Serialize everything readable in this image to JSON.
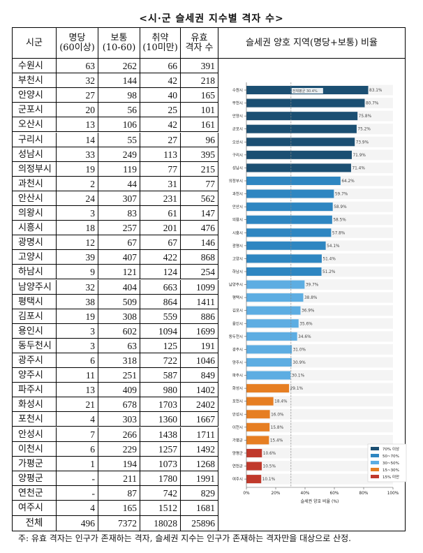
{
  "title": "<시·군 슬세권 지수별 격자 수>",
  "table": {
    "headers": [
      "시군",
      "명당",
      "(60이상)",
      "보통",
      "(10-60)",
      "취약",
      "(10미만)",
      "유효",
      "격자 수",
      "슬세권 양호 지역(명당+보통) 비율"
    ],
    "rows": [
      [
        "수원시",
        "63",
        "262",
        "66",
        "391"
      ],
      [
        "부천시",
        "32",
        "144",
        "42",
        "218"
      ],
      [
        "안양시",
        "27",
        "98",
        "40",
        "165"
      ],
      [
        "군포시",
        "20",
        "56",
        "25",
        "101"
      ],
      [
        "오산시",
        "13",
        "106",
        "42",
        "161"
      ],
      [
        "구리시",
        "14",
        "55",
        "27",
        "96"
      ],
      [
        "성남시",
        "33",
        "249",
        "113",
        "395"
      ],
      [
        "의정부시",
        "19",
        "119",
        "77",
        "215"
      ],
      [
        "과천시",
        "2",
        "44",
        "31",
        "77"
      ],
      [
        "안산시",
        "24",
        "307",
        "231",
        "562"
      ],
      [
        "의왕시",
        "3",
        "83",
        "61",
        "147"
      ],
      [
        "시흥시",
        "18",
        "257",
        "201",
        "476"
      ],
      [
        "광명시",
        "12",
        "67",
        "67",
        "146"
      ],
      [
        "고양시",
        "39",
        "407",
        "422",
        "868"
      ],
      [
        "하남시",
        "9",
        "121",
        "124",
        "254"
      ],
      [
        "남양주시",
        "32",
        "404",
        "663",
        "1099"
      ],
      [
        "평택시",
        "38",
        "509",
        "864",
        "1411"
      ],
      [
        "김포시",
        "19",
        "308",
        "559",
        "886"
      ],
      [
        "용인시",
        "3",
        "602",
        "1094",
        "1699"
      ],
      [
        "동두천시",
        "3",
        "63",
        "125",
        "191"
      ],
      [
        "광주시",
        "6",
        "318",
        "722",
        "1046"
      ],
      [
        "양주시",
        "11",
        "251",
        "587",
        "849"
      ],
      [
        "파주시",
        "13",
        "409",
        "980",
        "1402"
      ],
      [
        "화성시",
        "21",
        "678",
        "1703",
        "2402"
      ],
      [
        "포천시",
        "4",
        "303",
        "1360",
        "1667"
      ],
      [
        "안성시",
        "7",
        "266",
        "1438",
        "1711"
      ],
      [
        "이천시",
        "6",
        "229",
        "1257",
        "1492"
      ],
      [
        "가평군",
        "1",
        "194",
        "1073",
        "1268"
      ],
      [
        "양평군",
        "-",
        "211",
        "1780",
        "1991"
      ],
      [
        "연천군",
        "-",
        "87",
        "742",
        "829"
      ],
      [
        "여주시",
        "4",
        "165",
        "1512",
        "1681"
      ]
    ],
    "total": [
      "전체",
      "496",
      "7372",
      "18028",
      "25896"
    ]
  },
  "note": "주: 유효 격자는 인구가 존재하는 격자, 슬세권 지수는 인구가 존재하는 격자만을 대상으로 산정.",
  "chart_data": {
    "type": "bar",
    "orientation": "horizontal",
    "xlabel": "슬세권 양호 비율 (%)",
    "xlim": [
      0,
      100
    ],
    "xticks": [
      "0%",
      "20%",
      "40%",
      "60%",
      "80%",
      "100%"
    ],
    "categories": [
      "수원시",
      "부천시",
      "안양시",
      "군포시",
      "오산시",
      "구리시",
      "성남시",
      "의정부시",
      "과천시",
      "안산시",
      "의왕시",
      "시흥시",
      "광명시",
      "고양시",
      "하남시",
      "남양주시",
      "평택시",
      "김포시",
      "용인시",
      "동두천시",
      "광주시",
      "양주시",
      "파주시",
      "화성시",
      "포천시",
      "안성시",
      "이천시",
      "가평군",
      "양평군",
      "연천군",
      "여주시"
    ],
    "values": [
      83.1,
      80.7,
      75.8,
      75.2,
      73.9,
      71.9,
      71.4,
      64.2,
      59.7,
      58.9,
      58.5,
      57.8,
      54.1,
      51.4,
      51.2,
      39.7,
      38.8,
      36.9,
      35.6,
      34.6,
      31.0,
      30.9,
      30.1,
      29.1,
      18.4,
      16.0,
      15.8,
      15.4,
      10.6,
      10.5,
      10.1
    ],
    "mean_line": {
      "value": 30.4,
      "label": "전체평균 30.4%"
    },
    "legend": [
      {
        "label": "70% 이상",
        "min": 70,
        "color": "#1b4f72"
      },
      {
        "label": "50~70%",
        "min": 50,
        "color": "#2e86c1"
      },
      {
        "label": "30~50%",
        "min": 30,
        "color": "#5dade2"
      },
      {
        "label": "15~30%",
        "min": 15,
        "color": "#e67e22"
      },
      {
        "label": "15% 미만",
        "min": 0,
        "color": "#c0392b"
      }
    ],
    "legend_position": "bottom-right",
    "grid": false
  }
}
